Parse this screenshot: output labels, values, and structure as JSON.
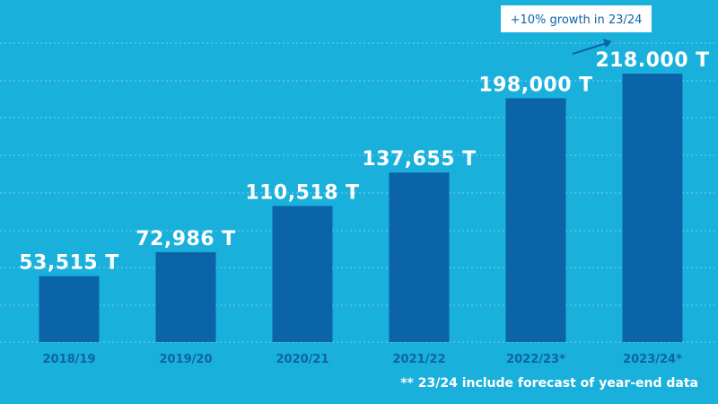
{
  "chart_data": {
    "type": "bar",
    "categories": [
      "2018/19",
      "2019/20",
      "2020/21",
      "2021/22",
      "2022/23*",
      "2023/24*"
    ],
    "values": [
      53515,
      72986,
      110518,
      137655,
      198000,
      218000
    ],
    "value_labels": [
      "53,515 T",
      "72,986 T",
      "110,518 T",
      "137,655 T",
      "198,000 T",
      "218.000 T"
    ],
    "ylim": [
      0,
      218000
    ],
    "grid": true,
    "annotation": "+10% growth in 23/24",
    "footnote": "** 23/24 include forecast of year-end data"
  },
  "colors": {
    "background": "#1ab0dc",
    "bar": "#0b63a8",
    "category_text": "#0d63a6",
    "value_text": "#ffffff"
  }
}
